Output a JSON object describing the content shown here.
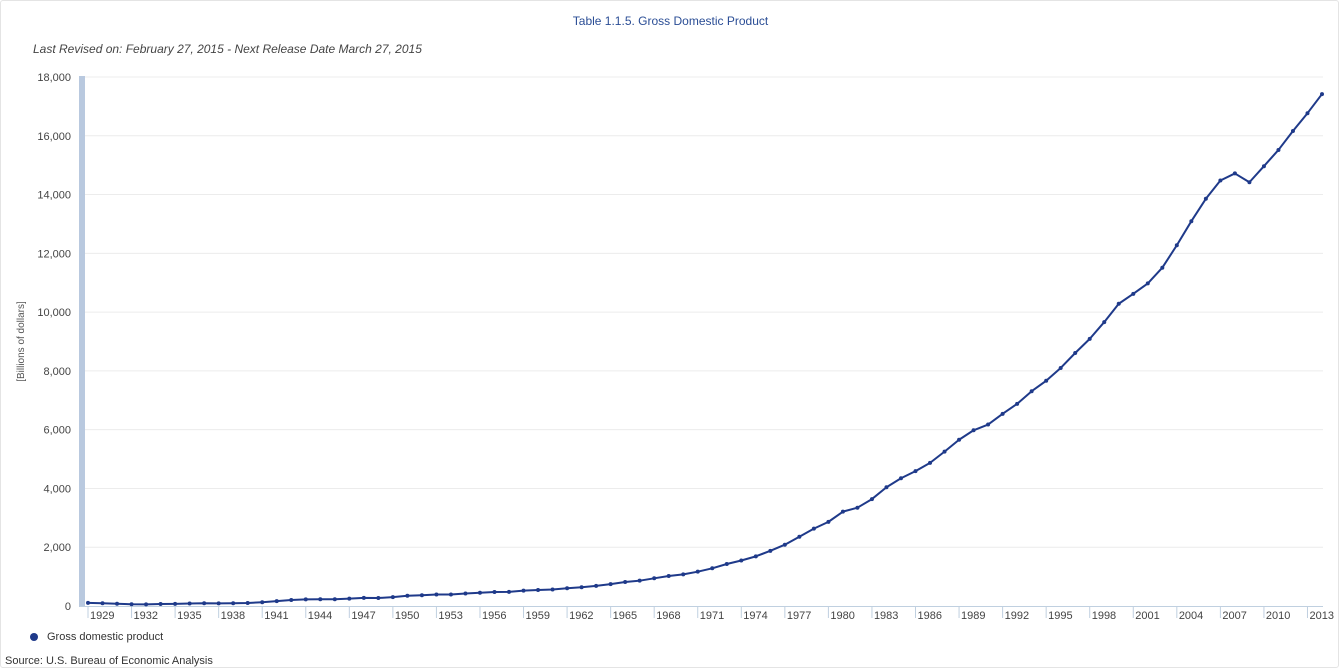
{
  "chart_data": {
    "type": "line",
    "title": "Table 1.1.5. Gross Domestic Product",
    "subtitle": "Last Revised on: February 27, 2015 - Next Release Date March 27, 2015",
    "xlabel": "",
    "ylabel": "[Billions of dollars]",
    "ylim": [
      0,
      18000
    ],
    "xlim": [
      1929,
      2014
    ],
    "y_ticks": [
      0,
      2000,
      4000,
      6000,
      8000,
      10000,
      12000,
      14000,
      16000,
      18000
    ],
    "y_tick_labels": [
      "0",
      "2,000",
      "4,000",
      "6,000",
      "8,000",
      "10,000",
      "12,000",
      "14,000",
      "16,000",
      "18,000"
    ],
    "x_tick_labels": [
      "1929",
      "1932",
      "1935",
      "1938",
      "1941",
      "1944",
      "1947",
      "1950",
      "1953",
      "1956",
      "1959",
      "1962",
      "1965",
      "1968",
      "1971",
      "1974",
      "1977",
      "1980",
      "1983",
      "1986",
      "1989",
      "1992",
      "1995",
      "1998",
      "2001",
      "2004",
      "2007",
      "2010",
      "2013"
    ],
    "grid": true,
    "legend_position": "bottom-left",
    "series": [
      {
        "name": "Gross domestic product",
        "color": "#1f3a8a",
        "x": [
          1929,
          1930,
          1931,
          1932,
          1933,
          1934,
          1935,
          1936,
          1937,
          1938,
          1939,
          1940,
          1941,
          1942,
          1943,
          1944,
          1945,
          1946,
          1947,
          1948,
          1949,
          1950,
          1951,
          1952,
          1953,
          1954,
          1955,
          1956,
          1957,
          1958,
          1959,
          1960,
          1961,
          1962,
          1963,
          1964,
          1965,
          1966,
          1967,
          1968,
          1969,
          1970,
          1971,
          1972,
          1973,
          1974,
          1975,
          1976,
          1977,
          1978,
          1979,
          1980,
          1981,
          1982,
          1983,
          1984,
          1985,
          1986,
          1987,
          1988,
          1989,
          1990,
          1991,
          1992,
          1993,
          1994,
          1995,
          1996,
          1997,
          1998,
          1999,
          2000,
          2001,
          2002,
          2003,
          2004,
          2005,
          2006,
          2007,
          2008,
          2009,
          2010,
          2011,
          2012,
          2013,
          2014
        ],
        "values": [
          104.6,
          92.2,
          77.4,
          59.5,
          57.2,
          66.8,
          74.3,
          84.9,
          93.0,
          87.4,
          93.5,
          102.9,
          129.4,
          166.0,
          203.1,
          224.6,
          228.2,
          227.8,
          249.9,
          274.8,
          272.8,
          300.2,
          347.3,
          367.7,
          389.7,
          391.1,
          426.2,
          450.1,
          474.9,
          482.0,
          522.5,
          543.3,
          563.3,
          605.1,
          638.6,
          685.8,
          743.7,
          815.0,
          861.7,
          942.5,
          1019.9,
          1075.9,
          1167.8,
          1282.4,
          1428.5,
          1548.8,
          1688.9,
          1877.6,
          2086.0,
          2356.6,
          2632.1,
          2862.5,
          3211.0,
          3345.0,
          3638.1,
          4040.7,
          4346.7,
          4590.2,
          4870.2,
          5252.6,
          5657.7,
          5979.6,
          6174.0,
          6539.3,
          6878.7,
          7308.8,
          7664.1,
          8100.2,
          8608.5,
          9089.2,
          9660.6,
          10284.8,
          10621.8,
          10977.5,
          11510.7,
          12274.9,
          13093.7,
          13855.9,
          14477.6,
          14718.6,
          14418.7,
          14964.4,
          15517.9,
          16163.2,
          16768.1,
          17418.9
        ]
      }
    ]
  },
  "source_text": "Source: U.S. Bureau of Economic Analysis"
}
